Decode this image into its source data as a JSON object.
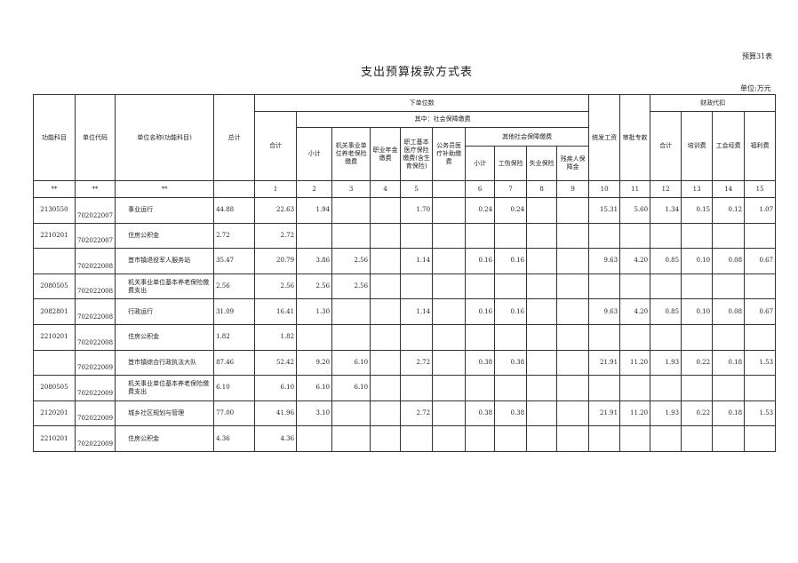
{
  "form_number": "预算31表",
  "title": "支出预算拨款方式表",
  "unit": "单位:万元",
  "headers": {
    "func_subject": "功能科目",
    "unit_code": "单位代码",
    "unit_name": "单位名称(功能科目)",
    "grand_total": "总计",
    "lower_unit": "下单位数",
    "total": "合计",
    "of_which_social": "其中：社会保障缴费",
    "subtotal": "小计",
    "pension": "机关事业单位养老保险缴费",
    "annuity": "职业年金缴费",
    "medical": "职工基本医疗保险缴费(含生育保险)",
    "civil_medical": "公务员医疗补助缴费",
    "other_social": "其他社会保障缴费",
    "other_subtotal": "小计",
    "injury": "工伤保险",
    "unemployment": "失业保险",
    "disability": "残疾人保障金",
    "unified_salary": "统发工资",
    "approved_special": "审批专款",
    "fiscal_withhold": "财政代扣",
    "fw_total": "合计",
    "training": "培训费",
    "union": "工会经费",
    "welfare": "福利费"
  },
  "index_row": [
    "**",
    "**",
    "**",
    "",
    "1",
    "2",
    "3",
    "4",
    "5",
    "",
    "6",
    "7",
    "8",
    "9",
    "10",
    "11",
    "12",
    "13",
    "14",
    "15"
  ],
  "rows": [
    [
      "2130550",
      "702022007",
      "事业运行",
      "44.88",
      "22.63",
      "1.94",
      "",
      "",
      "1.70",
      "",
      "0.24",
      "0.24",
      "",
      "",
      "15.31",
      "5.60",
      "1.34",
      "0.15",
      "0.12",
      "1.07"
    ],
    [
      "2210201",
      "702022007",
      "住房公积金",
      "2.72",
      "2.72",
      "",
      "",
      "",
      "",
      "",
      "",
      "",
      "",
      "",
      "",
      "",
      "",
      "",
      "",
      ""
    ],
    [
      "",
      "702022008",
      "笪市镇退役军人服务站",
      "35.47",
      "20.79",
      "3.86",
      "2.56",
      "",
      "1.14",
      "",
      "0.16",
      "0.16",
      "",
      "",
      "9.63",
      "4.20",
      "0.85",
      "0.10",
      "0.08",
      "0.67"
    ],
    [
      "2080505",
      "702022008",
      "机关事业单位基本养老保险缴费支出",
      "2.56",
      "2.56",
      "2.56",
      "2.56",
      "",
      "",
      "",
      "",
      "",
      "",
      "",
      "",
      "",
      "",
      "",
      "",
      ""
    ],
    [
      "2082801",
      "702022008",
      "行政运行",
      "31.09",
      "16.41",
      "1.30",
      "",
      "",
      "1.14",
      "",
      "0.16",
      "0.16",
      "",
      "",
      "9.63",
      "4.20",
      "0.85",
      "0.10",
      "0.08",
      "0.67"
    ],
    [
      "2210201",
      "702022008",
      "住房公积金",
      "1.82",
      "1.82",
      "",
      "",
      "",
      "",
      "",
      "",
      "",
      "",
      "",
      "",
      "",
      "",
      "",
      "",
      ""
    ],
    [
      "",
      "702022009",
      "笪市镇综合行政执法大队",
      "87.46",
      "52.42",
      "9.20",
      "6.10",
      "",
      "2.72",
      "",
      "0.38",
      "0.38",
      "",
      "",
      "21.91",
      "11.20",
      "1.93",
      "0.22",
      "0.18",
      "1.53"
    ],
    [
      "2080505",
      "702022009",
      "机关事业单位基本养老保险缴费支出",
      "6.10",
      "6.10",
      "6.10",
      "6.10",
      "",
      "",
      "",
      "",
      "",
      "",
      "",
      "",
      "",
      "",
      "",
      "",
      ""
    ],
    [
      "2120201",
      "702022009",
      "城乡社区规划与管理",
      "77.00",
      "41.96",
      "3.10",
      "",
      "",
      "2.72",
      "",
      "0.38",
      "0.38",
      "",
      "",
      "21.91",
      "11.20",
      "1.93",
      "0.22",
      "0.18",
      "1.53"
    ],
    [
      "2210201",
      "702022009",
      "住房公积金",
      "4.36",
      "4.36",
      "",
      "",
      "",
      "",
      "",
      "",
      "",
      "",
      "",
      "",
      "",
      "",
      "",
      "",
      ""
    ]
  ]
}
